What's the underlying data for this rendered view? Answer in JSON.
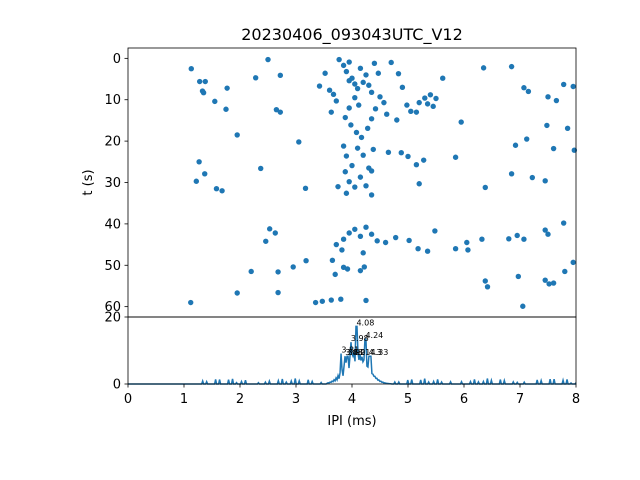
{
  "chart_data": [
    {
      "type": "scatter",
      "title": "20230406_093043UTC_V12",
      "xlabel": "",
      "ylabel": "t (s)",
      "xlim": [
        0,
        8
      ],
      "ylim": [
        62.5,
        -2.5
      ],
      "y_inverted": true,
      "yticks": [
        0,
        10,
        20,
        30,
        40,
        50,
        60
      ],
      "color": "#1f77b4",
      "points": [
        [
          1.13,
          2.5
        ],
        [
          1.28,
          5.6
        ],
        [
          1.38,
          5.6
        ],
        [
          1.33,
          7.9
        ],
        [
          1.35,
          8.3
        ],
        [
          1.55,
          10.4
        ],
        [
          1.77,
          7.2
        ],
        [
          1.75,
          12.3
        ],
        [
          1.95,
          18.5
        ],
        [
          2.28,
          4.7
        ],
        [
          2.5,
          0.3
        ],
        [
          2.65,
          12.4
        ],
        [
          2.72,
          13.0
        ],
        [
          2.72,
          4.1
        ],
        [
          3.05,
          20.2
        ],
        [
          3.17,
          31.4
        ],
        [
          1.27,
          25.0
        ],
        [
          1.37,
          27.9
        ],
        [
          1.22,
          29.7
        ],
        [
          1.58,
          31.5
        ],
        [
          1.68,
          32.0
        ],
        [
          2.37,
          26.6
        ],
        [
          2.46,
          44.2
        ],
        [
          2.53,
          41.2
        ],
        [
          2.63,
          42.2
        ],
        [
          2.2,
          51.5
        ],
        [
          1.95,
          56.7
        ],
        [
          2.68,
          51.6
        ],
        [
          2.68,
          56.6
        ],
        [
          2.95,
          50.4
        ],
        [
          3.18,
          48.9
        ],
        [
          3.35,
          59.0
        ],
        [
          1.12,
          59.0
        ],
        [
          3.47,
          58.7
        ],
        [
          3.63,
          58.4
        ],
        [
          3.8,
          58.2
        ],
        [
          4.25,
          58.5
        ],
        [
          3.42,
          6.7
        ],
        [
          3.6,
          7.7
        ],
        [
          3.67,
          8.7
        ],
        [
          3.72,
          10.3
        ],
        [
          3.63,
          13.0
        ],
        [
          3.52,
          3.6
        ],
        [
          3.77,
          0.3
        ],
        [
          3.85,
          1.7
        ],
        [
          3.9,
          3.2
        ],
        [
          3.95,
          5.4
        ],
        [
          4.0,
          4.8
        ],
        [
          4.05,
          6.2
        ],
        [
          4.1,
          7.3
        ],
        [
          4.15,
          2.4
        ],
        [
          4.2,
          5.8
        ],
        [
          4.25,
          4.0
        ],
        [
          4.3,
          6.5
        ],
        [
          4.35,
          8.2
        ],
        [
          4.4,
          1.2
        ],
        [
          4.47,
          3.6
        ],
        [
          4.05,
          9.5
        ],
        [
          4.12,
          11.3
        ],
        [
          3.95,
          12.0
        ],
        [
          3.88,
          14.3
        ],
        [
          3.98,
          16.1
        ],
        [
          4.08,
          17.9
        ],
        [
          4.17,
          19.1
        ],
        [
          4.28,
          16.9
        ],
        [
          4.35,
          14.6
        ],
        [
          4.42,
          12.2
        ],
        [
          4.5,
          9.3
        ],
        [
          4.57,
          10.7
        ],
        [
          4.62,
          13.5
        ],
        [
          4.7,
          1.0
        ],
        [
          4.83,
          3.7
        ],
        [
          4.9,
          7.0
        ],
        [
          4.98,
          11.3
        ],
        [
          5.05,
          12.8
        ],
        [
          5.2,
          10.7
        ],
        [
          5.3,
          9.6
        ],
        [
          5.4,
          8.8
        ],
        [
          5.5,
          9.7
        ],
        [
          5.62,
          4.8
        ],
        [
          5.45,
          11.6
        ],
        [
          4.8,
          14.9
        ],
        [
          5.95,
          15.4
        ],
        [
          3.85,
          21.2
        ],
        [
          3.9,
          23.6
        ],
        [
          4.0,
          25.9
        ],
        [
          4.1,
          21.7
        ],
        [
          4.2,
          23.4
        ],
        [
          4.3,
          26.5
        ],
        [
          4.38,
          22.0
        ],
        [
          3.88,
          27.4
        ],
        [
          3.95,
          29.8
        ],
        [
          4.05,
          31.1
        ],
        [
          4.15,
          28.7
        ],
        [
          4.25,
          30.8
        ],
        [
          4.35,
          27.2
        ],
        [
          3.9,
          32.6
        ],
        [
          3.75,
          31.0
        ],
        [
          4.88,
          22.8
        ],
        [
          5.0,
          23.7
        ],
        [
          5.15,
          25.7
        ],
        [
          5.28,
          24.6
        ],
        [
          5.2,
          30.3
        ],
        [
          5.85,
          23.9
        ],
        [
          6.38,
          31.2
        ],
        [
          3.85,
          43.7
        ],
        [
          3.95,
          42.2
        ],
        [
          4.05,
          41.3
        ],
        [
          4.15,
          43.0
        ],
        [
          4.25,
          40.8
        ],
        [
          4.35,
          42.5
        ],
        [
          4.45,
          44.1
        ],
        [
          3.72,
          45.0
        ],
        [
          4.6,
          44.5
        ],
        [
          4.78,
          43.3
        ],
        [
          5.02,
          44.0
        ],
        [
          5.18,
          46.0
        ],
        [
          5.35,
          46.6
        ],
        [
          5.48,
          41.7
        ],
        [
          5.85,
          46.0
        ],
        [
          6.05,
          44.5
        ],
        [
          6.07,
          46.3
        ],
        [
          6.32,
          43.7
        ],
        [
          6.8,
          43.6
        ],
        [
          6.95,
          42.8
        ],
        [
          7.07,
          43.7
        ],
        [
          3.65,
          48.8
        ],
        [
          3.85,
          50.5
        ],
        [
          3.92,
          50.9
        ],
        [
          4.15,
          51.3
        ],
        [
          4.22,
          50.4
        ],
        [
          3.7,
          52.2
        ],
        [
          3.82,
          46.3
        ],
        [
          6.38,
          53.8
        ],
        [
          6.42,
          55.2
        ],
        [
          6.97,
          52.7
        ],
        [
          7.05,
          59.9
        ],
        [
          7.45,
          53.6
        ],
        [
          7.52,
          54.5
        ],
        [
          7.6,
          54.3
        ],
        [
          7.8,
          51.5
        ],
        [
          7.95,
          49.3
        ],
        [
          7.45,
          41.5
        ],
        [
          7.5,
          42.5
        ],
        [
          7.78,
          39.8
        ],
        [
          6.35,
          2.3
        ],
        [
          6.85,
          2.0
        ],
        [
          7.07,
          7.1
        ],
        [
          7.15,
          8.0
        ],
        [
          7.5,
          9.3
        ],
        [
          7.65,
          10.2
        ],
        [
          7.78,
          6.3
        ],
        [
          7.95,
          6.8
        ],
        [
          7.48,
          16.2
        ],
        [
          7.12,
          19.5
        ],
        [
          6.92,
          21.0
        ],
        [
          7.6,
          21.8
        ],
        [
          7.85,
          16.9
        ],
        [
          7.97,
          22.2
        ],
        [
          6.85,
          27.9
        ],
        [
          7.22,
          28.8
        ],
        [
          7.45,
          29.6
        ],
        [
          5.35,
          11.0
        ],
        [
          5.15,
          13.0
        ],
        [
          4.65,
          22.7
        ],
        [
          3.95,
          0.9
        ],
        [
          4.35,
          33.0
        ],
        [
          4.2,
          47.0
        ]
      ]
    },
    {
      "type": "line",
      "title": "",
      "xlabel": "IPI (ms)",
      "ylabel": "",
      "xlim": [
        0,
        8
      ],
      "ylim": [
        0,
        20
      ],
      "xticks": [
        0,
        1,
        2,
        3,
        4,
        5,
        6,
        7,
        8
      ],
      "yticks": [
        0,
        20
      ],
      "color": "#1f77b4",
      "peaks": [
        {
          "label": "3.81",
          "x": 3.81,
          "y": 9.1
        },
        {
          "label": "3.88",
          "x": 3.88,
          "y": 8.3
        },
        {
          "label": "3.92",
          "x": 3.92,
          "y": 8.3
        },
        {
          "label": "3.98",
          "x": 3.98,
          "y": 12.5
        },
        {
          "label": "4.01",
          "x": 4.01,
          "y": 8.3
        },
        {
          "label": "4.08",
          "x": 4.08,
          "y": 17.2
        },
        {
          "label": "4.24",
          "x": 4.24,
          "y": 13.4
        },
        {
          "label": "4.3",
          "x": 4.3,
          "y": 8.3
        },
        {
          "label": "4.33",
          "x": 4.33,
          "y": 8.3
        }
      ]
    }
  ]
}
